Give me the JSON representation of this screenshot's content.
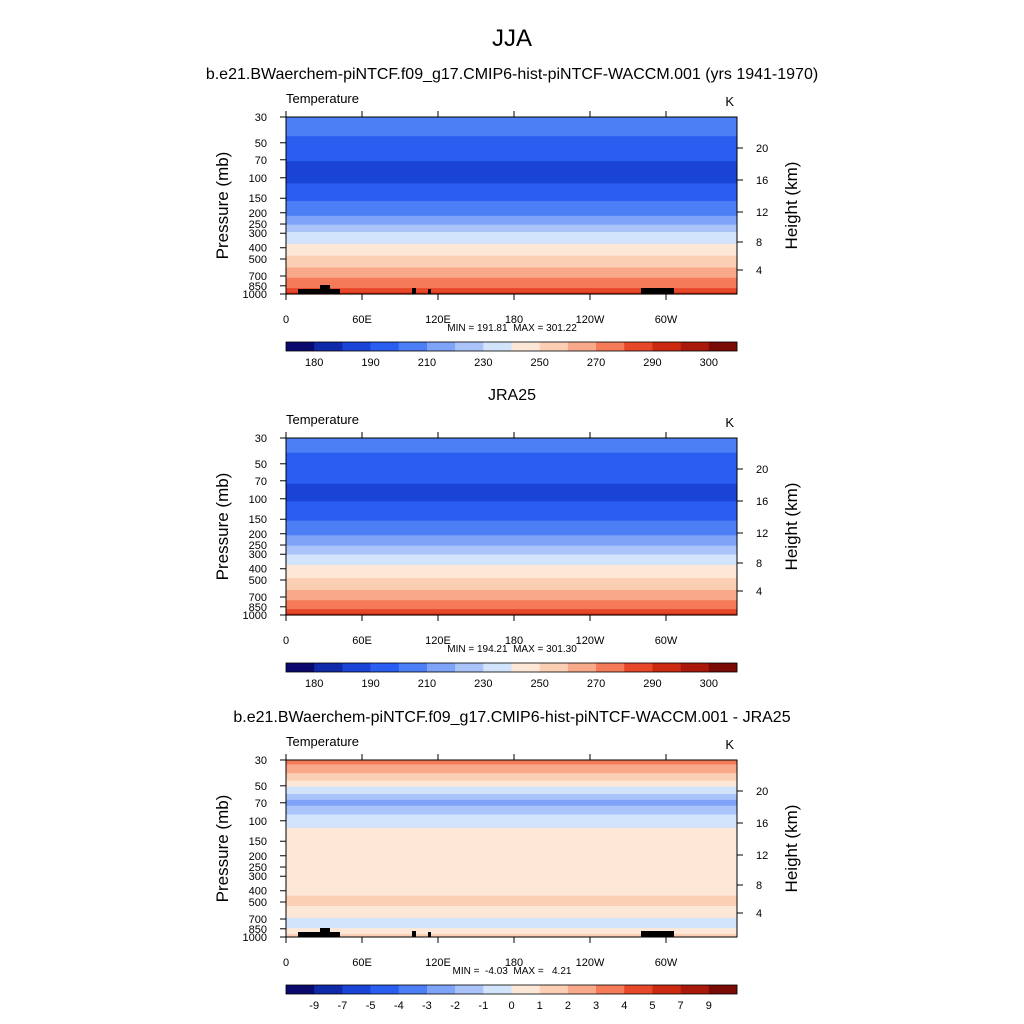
{
  "figure": {
    "title": "JJA"
  },
  "chart_data": [
    {
      "type": "heatmap",
      "title": "b.e21.BWaerchem-piNTCF.f09_g17.CMIP6-hist-piNTCF-WACCM.001 (yrs 1941-1970)",
      "variable": "Temperature",
      "units": "K",
      "ylabel": "Pressure (mb)",
      "ylabel_right": "Height (km)",
      "x_ticks": [
        "0",
        "60E",
        "120E",
        "180",
        "120W",
        "60W"
      ],
      "y_ticks": [
        "30",
        "50",
        "70",
        "100",
        "150",
        "200",
        "250",
        "300",
        "400",
        "500",
        "700",
        "850",
        "1000"
      ],
      "y_ticks_right": [
        "20",
        "16",
        "12",
        "8",
        "4"
      ],
      "stats": "MIN = 191.81  MAX = 301.22",
      "min": 191.81,
      "max": 301.22,
      "colorbar_labels": [
        "180",
        "190",
        "210",
        "230",
        "250",
        "270",
        "290",
        "300"
      ],
      "colorbar_colors": [
        "#0a0a6e",
        "#0f2aa8",
        "#1a44d6",
        "#2a5ef0",
        "#4c7ef5",
        "#7fa3f7",
        "#aac4fa",
        "#d2e4fc",
        "#fde8d8",
        "#fbcfb4",
        "#f8a98a",
        "#f47a58",
        "#e8482a",
        "#cc2a10",
        "#a8190b",
        "#7a0a05"
      ],
      "profile": [
        {
          "p": 30,
          "v": 217
        },
        {
          "p": 40,
          "v": 212
        },
        {
          "p": 55,
          "v": 205
        },
        {
          "p": 75,
          "v": 199
        },
        {
          "p": 100,
          "v": 198
        },
        {
          "p": 130,
          "v": 203
        },
        {
          "p": 170,
          "v": 212
        },
        {
          "p": 210,
          "v": 220
        },
        {
          "p": 250,
          "v": 229
        },
        {
          "p": 300,
          "v": 241
        },
        {
          "p": 400,
          "v": 254
        },
        {
          "p": 500,
          "v": 263
        },
        {
          "p": 600,
          "v": 271
        },
        {
          "p": 700,
          "v": 278
        },
        {
          "p": 850,
          "v": 287
        },
        {
          "p": 1000,
          "v": 297
        }
      ],
      "topography": true
    },
    {
      "type": "heatmap",
      "title": "JRA25",
      "variable": "Temperature",
      "units": "K",
      "ylabel": "Pressure (mb)",
      "ylabel_right": "Height (km)",
      "x_ticks": [
        "0",
        "60E",
        "120E",
        "180",
        "120W",
        "60W"
      ],
      "y_ticks": [
        "30",
        "50",
        "70",
        "100",
        "150",
        "200",
        "250",
        "300",
        "400",
        "500",
        "700",
        "850",
        "1000"
      ],
      "y_ticks_right": [
        "20",
        "16",
        "12",
        "8",
        "4"
      ],
      "stats": "MIN = 194.21  MAX = 301.30",
      "min": 194.21,
      "max": 301.3,
      "colorbar_labels": [
        "180",
        "190",
        "210",
        "230",
        "250",
        "270",
        "290",
        "300"
      ],
      "colorbar_colors": [
        "#0a0a6e",
        "#0f2aa8",
        "#1a44d6",
        "#2a5ef0",
        "#4c7ef5",
        "#7fa3f7",
        "#aac4fa",
        "#d2e4fc",
        "#fde8d8",
        "#fbcfb4",
        "#f8a98a",
        "#f47a58",
        "#e8482a",
        "#cc2a10",
        "#a8190b",
        "#7a0a05"
      ],
      "profile": [
        {
          "p": 30,
          "v": 214
        },
        {
          "p": 40,
          "v": 210
        },
        {
          "p": 55,
          "v": 205
        },
        {
          "p": 75,
          "v": 200
        },
        {
          "p": 100,
          "v": 199
        },
        {
          "p": 130,
          "v": 204
        },
        {
          "p": 170,
          "v": 213
        },
        {
          "p": 210,
          "v": 221
        },
        {
          "p": 250,
          "v": 229
        },
        {
          "p": 300,
          "v": 240
        },
        {
          "p": 400,
          "v": 253
        },
        {
          "p": 500,
          "v": 262
        },
        {
          "p": 600,
          "v": 270
        },
        {
          "p": 700,
          "v": 277
        },
        {
          "p": 850,
          "v": 286
        },
        {
          "p": 1000,
          "v": 297
        }
      ],
      "topography": false
    },
    {
      "type": "heatmap",
      "title": "b.e21.BWaerchem-piNTCF.f09_g17.CMIP6-hist-piNTCF-WACCM.001 - JRA25",
      "variable": "Temperature",
      "units": "K",
      "ylabel": "Pressure (mb)",
      "ylabel_right": "Height (km)",
      "x_ticks": [
        "0",
        "60E",
        "120E",
        "180",
        "120W",
        "60W"
      ],
      "y_ticks": [
        "30",
        "50",
        "70",
        "100",
        "150",
        "200",
        "250",
        "300",
        "400",
        "500",
        "700",
        "850",
        "1000"
      ],
      "y_ticks_right": [
        "20",
        "16",
        "12",
        "8",
        "4"
      ],
      "stats": "MIN =  -4.03  MAX =   4.21",
      "min": -4.03,
      "max": 4.21,
      "colorbar_labels": [
        "-9",
        "-7",
        "-5",
        "-4",
        "-3",
        "-2",
        "-1",
        "0",
        "1",
        "2",
        "3",
        "4",
        "5",
        "7",
        "9"
      ],
      "colorbar_colors": [
        "#0a0a6e",
        "#0f2aa8",
        "#1a44d6",
        "#2a5ef0",
        "#4c7ef5",
        "#7fa3f7",
        "#aac4fa",
        "#d2e4fc",
        "#fde8d8",
        "#fbcfb4",
        "#f8a98a",
        "#f47a58",
        "#e8482a",
        "#cc2a10",
        "#a8190b",
        "#7a0a05"
      ],
      "profile": [
        {
          "p": 30,
          "v": 3.5
        },
        {
          "p": 36,
          "v": 2.5
        },
        {
          "p": 42,
          "v": 1.5
        },
        {
          "p": 48,
          "v": 0.5
        },
        {
          "p": 55,
          "v": -0.5
        },
        {
          "p": 62,
          "v": -1.5
        },
        {
          "p": 70,
          "v": -2.5
        },
        {
          "p": 80,
          "v": -1.5
        },
        {
          "p": 95,
          "v": -0.5
        },
        {
          "p": 140,
          "v": 0.5
        },
        {
          "p": 400,
          "v": 0.5
        },
        {
          "p": 500,
          "v": 1.5
        },
        {
          "p": 600,
          "v": 0.5
        },
        {
          "p": 800,
          "v": -0.5
        },
        {
          "p": 900,
          "v": 0.5
        },
        {
          "p": 1000,
          "v": 1.5
        }
      ],
      "topography": true
    }
  ]
}
